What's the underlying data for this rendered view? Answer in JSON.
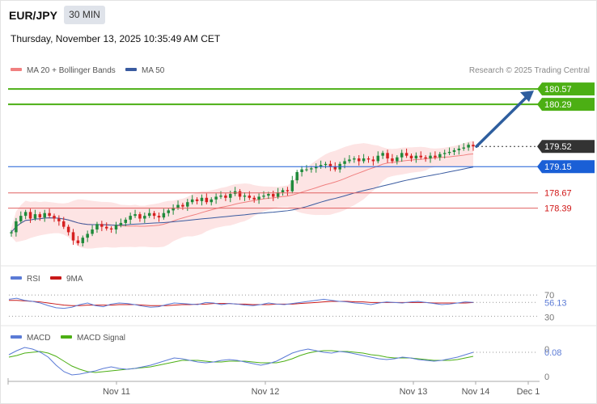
{
  "header": {
    "symbol": "EUR/JPY",
    "timeframe": "30 MIN",
    "datetime": "Thursday, November 13, 2025 10:35:49 AM CET"
  },
  "legend": {
    "ma20": "MA 20 + Bollinger Bands",
    "ma50": "MA 50",
    "copyright": "Research © 2025 Trading Central",
    "rsi": "RSI",
    "rsi_ma": "9MA",
    "macd": "MACD",
    "macd_signal": "MACD Signal"
  },
  "colors": {
    "ma20": "#f08080",
    "band_fill": "#fde4e4",
    "ma50": "#3a5ba0",
    "candle_up": "#1f8a3b",
    "candle_down": "#d62020",
    "target": "#4caf14",
    "pivot": "#1a5fd6",
    "support": "#e06060",
    "last_price": "#333333",
    "arrow": "#2e5e9e",
    "rsi": "#5b7bd6",
    "rsi_ma": "#c81818",
    "macd": "#5b7bd6",
    "macd_signal": "#4caf14"
  },
  "chart_data": [
    {
      "type": "candlestick",
      "title": "EUR/JPY 30 MIN",
      "x_ticks": [
        "Nov 11",
        "Nov 12",
        "Nov 13",
        "Nov 14",
        "Dec 1"
      ],
      "y_range": [
        177.35,
        180.75
      ],
      "close": [
        177.95,
        178.15,
        178.25,
        178.32,
        178.2,
        178.28,
        178.22,
        178.3,
        178.25,
        178.2,
        178.15,
        178.05,
        177.95,
        177.8,
        177.75,
        177.85,
        177.92,
        178.0,
        178.1,
        178.05,
        178.02,
        178.0,
        178.08,
        178.12,
        178.18,
        178.25,
        178.28,
        178.2,
        178.25,
        178.3,
        178.25,
        178.22,
        178.3,
        178.35,
        178.4,
        178.45,
        178.42,
        178.5,
        178.55,
        178.52,
        178.58,
        178.5,
        178.55,
        178.6,
        178.62,
        178.58,
        178.65,
        178.7,
        178.6,
        178.62,
        178.58,
        178.55,
        178.6,
        178.62,
        178.65,
        178.6,
        178.68,
        178.72,
        178.7,
        178.9,
        179.05,
        179.1,
        179.1,
        179.12,
        179.15,
        179.18,
        179.2,
        179.15,
        179.1,
        179.2,
        179.25,
        179.28,
        179.3,
        179.25,
        179.3,
        179.28,
        179.25,
        179.35,
        179.4,
        179.3,
        179.25,
        179.32,
        179.4,
        179.35,
        179.3,
        179.35,
        179.32,
        179.3,
        179.35,
        179.32,
        179.38,
        179.4,
        179.42,
        179.45,
        179.48,
        179.5,
        179.55,
        179.52
      ],
      "current_price": 179.52,
      "levels": [
        {
          "label": "180.57",
          "value": 180.57,
          "kind": "target"
        },
        {
          "label": "180.29",
          "value": 180.29,
          "kind": "target"
        },
        {
          "label": "179.52",
          "value": 179.52,
          "kind": "last"
        },
        {
          "label": "179.15",
          "value": 179.15,
          "kind": "pivot"
        },
        {
          "label": "178.67",
          "value": 178.67,
          "kind": "support"
        },
        {
          "label": "178.39",
          "value": 178.39,
          "kind": "support"
        }
      ],
      "arrow": {
        "from": 179.52,
        "to": 180.57,
        "direction": "up"
      },
      "legend_placement": "top-left"
    },
    {
      "type": "line",
      "name": "RSI panel",
      "y_ticks": [
        70,
        30
      ],
      "current_value": 56.13,
      "value_label": "56.13",
      "rsi": [
        62,
        64,
        60,
        58,
        55,
        50,
        46,
        45,
        47,
        52,
        55,
        50,
        48,
        53,
        55,
        54,
        52,
        49,
        47,
        48,
        52,
        55,
        54,
        53,
        52,
        56,
        55,
        52,
        54,
        53,
        51,
        50,
        52,
        55,
        53,
        52,
        54,
        56,
        58,
        60,
        62,
        60,
        58,
        57,
        55,
        54,
        52,
        55,
        57,
        56,
        55,
        57,
        58,
        56,
        54,
        52,
        53,
        55,
        57,
        56.13
      ],
      "rsi_ma": [
        60,
        60,
        59,
        58,
        57,
        55,
        53,
        51,
        50,
        50,
        51,
        51,
        51,
        51,
        52,
        52,
        52,
        51,
        50,
        50,
        50,
        51,
        52,
        52,
        53,
        53,
        54,
        54,
        54,
        53,
        53,
        52,
        52,
        52,
        53,
        53,
        53,
        54,
        55,
        56,
        57,
        58,
        58,
        58,
        57,
        57,
        56,
        56,
        56,
        56,
        56,
        56,
        56,
        56,
        55,
        55,
        55,
        55,
        55,
        56
      ]
    },
    {
      "type": "line",
      "name": "MACD panel",
      "y_ticks": [
        0,
        0
      ],
      "current_value": 0.08,
      "value_label": "0.08",
      "macd": [
        0.05,
        0.1,
        0.14,
        0.12,
        0.08,
        0.02,
        -0.08,
        -0.16,
        -0.2,
        -0.19,
        -0.17,
        -0.15,
        -0.12,
        -0.1,
        -0.12,
        -0.13,
        -0.12,
        -0.1,
        -0.08,
        -0.05,
        -0.02,
        0.01,
        0.0,
        -0.02,
        -0.04,
        -0.05,
        -0.04,
        -0.02,
        -0.01,
        -0.02,
        -0.04,
        -0.06,
        -0.08,
        -0.06,
        -0.03,
        0.02,
        0.07,
        0.1,
        0.12,
        0.1,
        0.08,
        0.07,
        0.09,
        0.08,
        0.06,
        0.04,
        0.02,
        0.0,
        -0.01,
        0.0,
        0.02,
        0.01,
        -0.01,
        -0.02,
        -0.03,
        -0.02,
        0.0,
        0.02,
        0.05,
        0.08
      ],
      "macd_signal": [
        0.02,
        0.04,
        0.07,
        0.08,
        0.09,
        0.07,
        0.03,
        -0.03,
        -0.09,
        -0.13,
        -0.16,
        -0.17,
        -0.16,
        -0.15,
        -0.14,
        -0.13,
        -0.12,
        -0.11,
        -0.1,
        -0.08,
        -0.06,
        -0.04,
        -0.02,
        -0.02,
        -0.02,
        -0.03,
        -0.04,
        -0.04,
        -0.03,
        -0.03,
        -0.03,
        -0.04,
        -0.05,
        -0.05,
        -0.05,
        -0.03,
        0.0,
        0.04,
        0.07,
        0.09,
        0.1,
        0.1,
        0.09,
        0.09,
        0.08,
        0.07,
        0.05,
        0.04,
        0.02,
        0.01,
        0.01,
        0.01,
        0.0,
        -0.01,
        -0.02,
        -0.02,
        -0.02,
        -0.01,
        0.01,
        0.03
      ]
    }
  ]
}
